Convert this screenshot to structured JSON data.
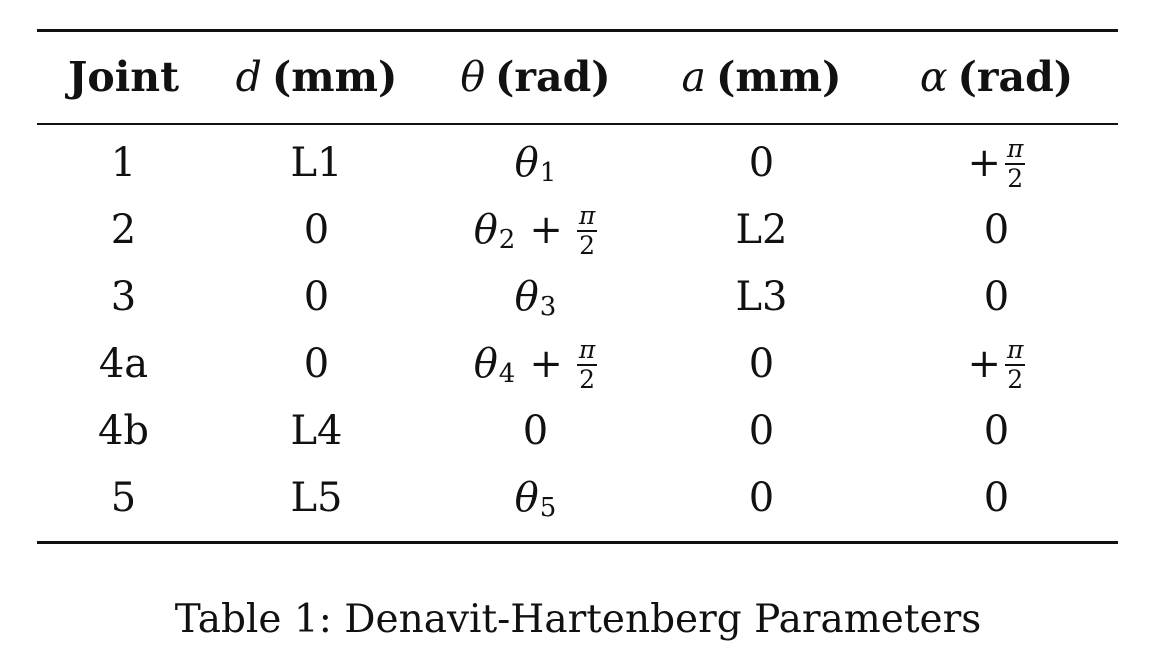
{
  "table": {
    "headers": {
      "joint": "Joint",
      "d_symbol": "d",
      "d_unit": "(mm)",
      "theta_symbol": "θ",
      "theta_unit": "(rad)",
      "a_symbol": "a",
      "a_unit": "(mm)",
      "alpha_symbol": "α",
      "alpha_unit": "(rad)"
    },
    "rows": [
      {
        "joint": "1",
        "d": "L1",
        "theta_base": "θ",
        "theta_sub": "1",
        "theta_offset": "",
        "a": "0",
        "alpha": "+π/2"
      },
      {
        "joint": "2",
        "d": "0",
        "theta_base": "θ",
        "theta_sub": "2",
        "theta_offset": "+π/2",
        "a": "L2",
        "alpha": "0"
      },
      {
        "joint": "3",
        "d": "0",
        "theta_base": "θ",
        "theta_sub": "3",
        "theta_offset": "",
        "a": "L3",
        "alpha": "0"
      },
      {
        "joint": "4a",
        "d": "0",
        "theta_base": "θ",
        "theta_sub": "4",
        "theta_offset": "+π/2",
        "a": "0",
        "alpha": "+π/2"
      },
      {
        "joint": "4b",
        "d": "L4",
        "theta_base": "",
        "theta_sub": "",
        "theta_offset": "",
        "theta_value": "0",
        "a": "0",
        "alpha": "0"
      },
      {
        "joint": "5",
        "d": "L5",
        "theta_base": "θ",
        "theta_sub": "5",
        "theta_offset": "",
        "a": "0",
        "alpha": "0"
      }
    ]
  },
  "math": {
    "plus": "+",
    "pi": "π",
    "two": "2"
  },
  "caption": "Table 1: Denavit-Hartenberg Parameters"
}
